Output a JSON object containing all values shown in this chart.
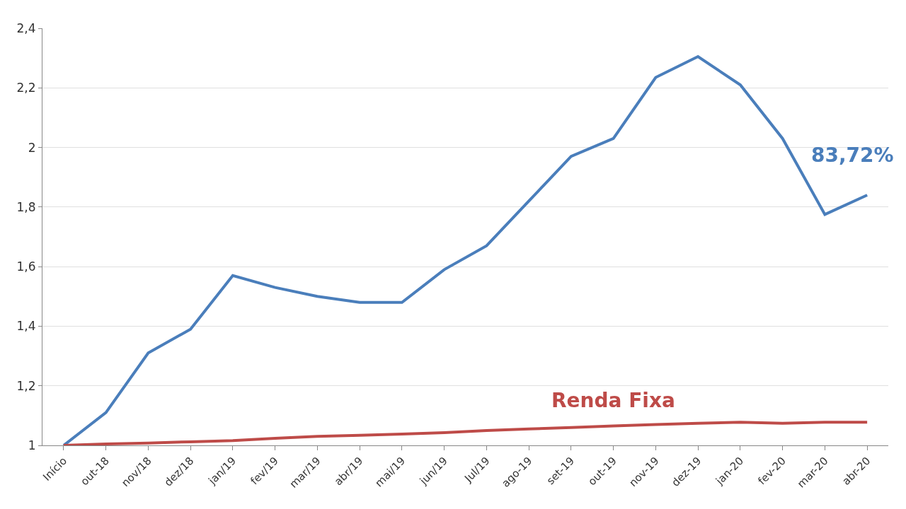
{
  "chart_data": {
    "type": "line",
    "categories": [
      "Início",
      "out-18",
      "nov/18",
      "dez/18",
      "jan/19",
      "fev/19",
      "mar/19",
      "abr/19",
      "mai/19",
      "jun/19",
      "Jul/19",
      "ago-19",
      "set-19",
      "out-19",
      "nov-19",
      "dez-19",
      "jan-20",
      "fev-20",
      "mar-20",
      "abr-20"
    ],
    "series": [
      {
        "color": "#4a7ebb",
        "values": [
          1.0,
          1.11,
          1.31,
          1.39,
          1.57,
          1.53,
          1.5,
          1.48,
          1.48,
          1.59,
          1.67,
          1.82,
          1.97,
          2.03,
          2.235,
          2.305,
          2.21,
          2.03,
          1.775,
          1.84
        ]
      },
      {
        "name": "Renda Fixa",
        "color": "#be4b48",
        "values": [
          1.0,
          1.005,
          1.008,
          1.012,
          1.016,
          1.024,
          1.03,
          1.034,
          1.038,
          1.043,
          1.05,
          1.055,
          1.06,
          1.065,
          1.07,
          1.074,
          1.078,
          1.074,
          1.078,
          1.078
        ]
      }
    ],
    "annotations": [
      {
        "text": "83,72%",
        "x": "abr-20",
        "y": 1.84
      }
    ],
    "ylim": [
      1,
      2.4
    ],
    "yticks": [
      1,
      {
        "value": 1.2,
        "label": "1,2"
      },
      {
        "value": 1.4,
        "label": "1,4"
      },
      {
        "value": 1.6,
        "label": "1,6"
      },
      {
        "value": 1.8,
        "label": "1,8"
      },
      2,
      {
        "value": 2.2,
        "label": "2,2"
      },
      {
        "value": 2.4,
        "label": "2,4"
      }
    ],
    "grid": "y",
    "legend": false,
    "line_style": "solid",
    "marker": "none"
  }
}
